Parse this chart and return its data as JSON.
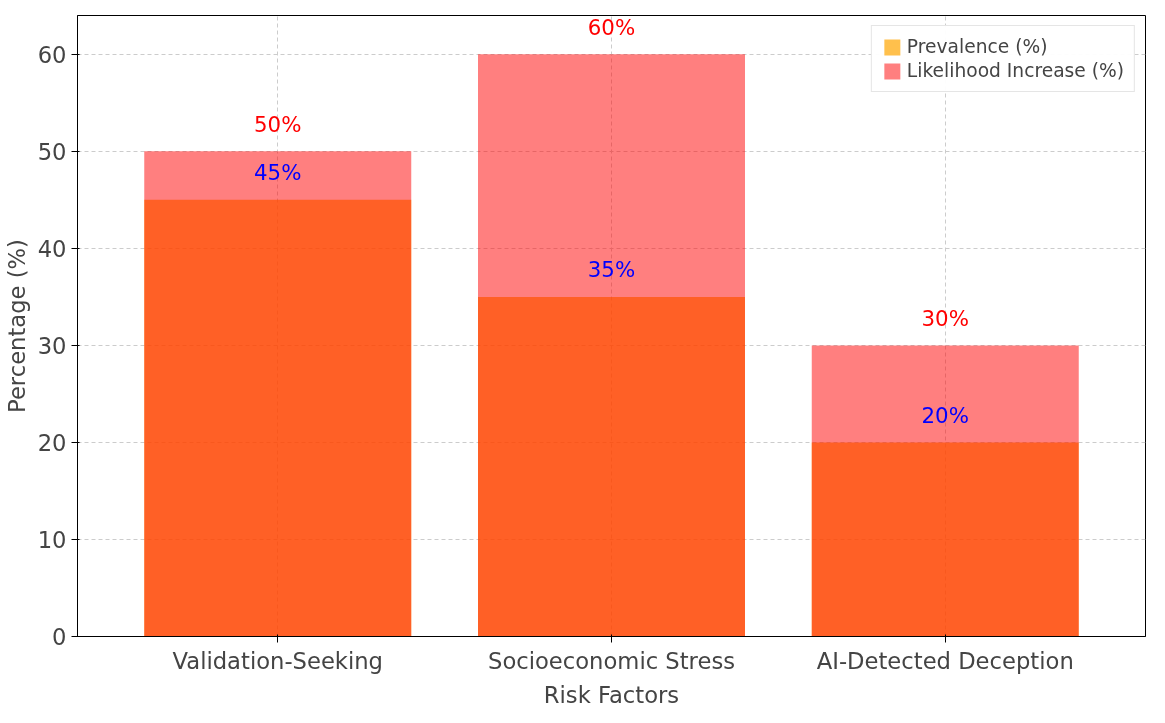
{
  "chart_data": {
    "type": "bar",
    "xlabel": "Risk Factors",
    "ylabel": "Percentage (%)",
    "categories": [
      "Validation-Seeking",
      "Socioeconomic Stress",
      "AI-Detected Deception"
    ],
    "series": [
      {
        "name": "Prevalence (%)",
        "color": "#ffa500",
        "values": [
          45,
          35,
          20
        ],
        "value_labels": [
          "45%",
          "35%",
          "20%"
        ]
      },
      {
        "name": "Likelihood Increase (%)",
        "color": "#ff0000",
        "values": [
          50,
          60,
          30
        ],
        "value_labels": [
          "50%",
          "60%",
          "30%"
        ]
      }
    ],
    "ylim": [
      0,
      64
    ],
    "yticks": [
      0,
      10,
      20,
      30,
      40,
      50,
      60
    ],
    "grid": true,
    "legend": "top right"
  }
}
